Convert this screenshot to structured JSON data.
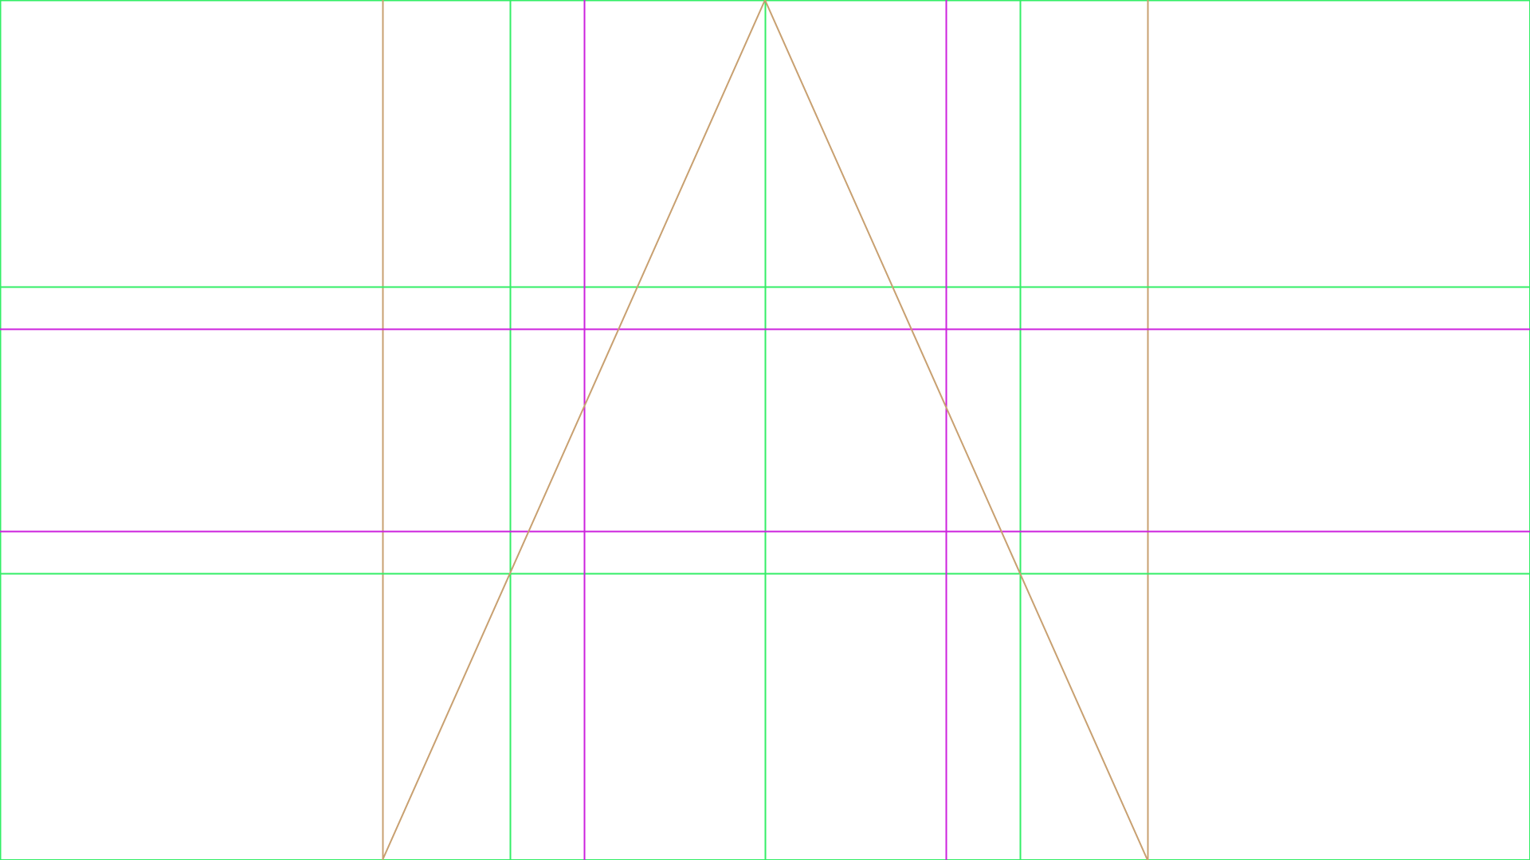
{
  "figure": {
    "type": "composition-grid-overlay",
    "description_label": ""
  },
  "colors": {
    "background": "#ffffff",
    "thirds_grid": "#33ee66",
    "golden_ratio_grid": "#cc22dd",
    "triangle": "#c8a070"
  },
  "grids": {
    "thirds": {
      "name": "rule-of-thirds",
      "fractions": [
        0.3333,
        0.6667
      ]
    },
    "golden": {
      "name": "phi-grid",
      "fractions": [
        0.382,
        0.618
      ]
    },
    "quarters": {
      "name": "quarter-verticals",
      "fractions": [
        0.25,
        0.75
      ]
    }
  },
  "triangle": {
    "name": "dynamic-triangle",
    "apex_fraction": 0.5,
    "base_left_fraction": 0.25,
    "base_right_fraction": 0.75
  }
}
